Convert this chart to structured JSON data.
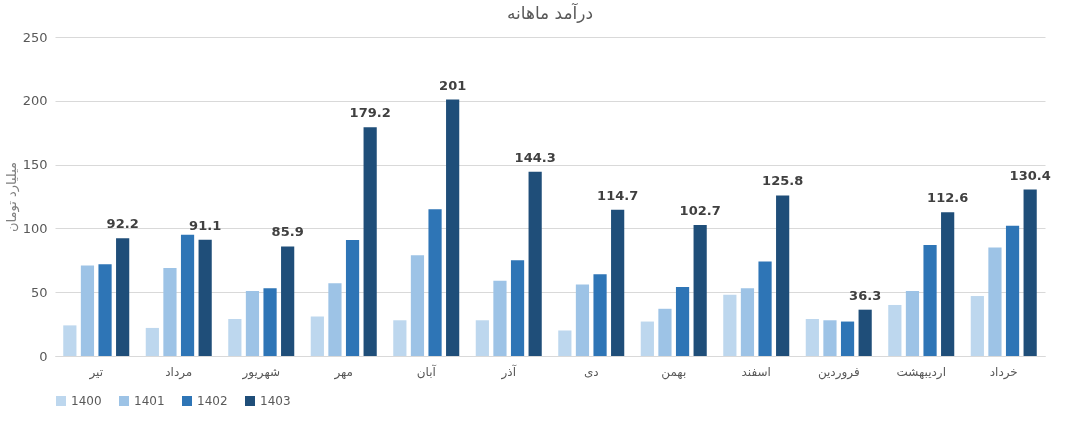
{
  "chart_data": {
    "type": "bar",
    "title": "درآمد ماهانه",
    "ylabel": "میلیارد تومان",
    "categories": [
      "تیر",
      "مرداد",
      "شهریور",
      "مهر",
      "آبان",
      "آذر",
      "دی",
      "بهمن",
      "اسفند",
      "فروردین",
      "اردیبهشت",
      "خرداد"
    ],
    "series": [
      {
        "name": "1400",
        "color": "#bdd7ee",
        "values": [
          24,
          22,
          29,
          31,
          28,
          28,
          20,
          27,
          48,
          29,
          40,
          47
        ]
      },
      {
        "name": "1401",
        "color": "#9dc3e6",
        "values": [
          71,
          69,
          51,
          57,
          79,
          59,
          56,
          37,
          53,
          28,
          51,
          85
        ]
      },
      {
        "name": "1402",
        "color": "#2e75b6",
        "values": [
          72,
          95,
          53,
          91,
          115,
          75,
          64,
          54,
          74,
          27,
          87,
          102
        ]
      },
      {
        "name": "1403",
        "color": "#1f4e79",
        "values": [
          92.2,
          91.1,
          85.9,
          179.2,
          201,
          144.3,
          114.7,
          102.7,
          125.8,
          36.3,
          112.6,
          130.4
        ],
        "value_labels": [
          "92.2",
          "91.1",
          "85.9",
          "179.2",
          "201",
          "144.3",
          "114.7",
          "102.7",
          "125.8",
          "36.3",
          "112.6",
          "130.4"
        ]
      }
    ],
    "ylim": [
      0,
      250
    ],
    "yticks": [
      0,
      50,
      100,
      150,
      200,
      250
    ],
    "grid": "y",
    "legend": "bottom"
  }
}
